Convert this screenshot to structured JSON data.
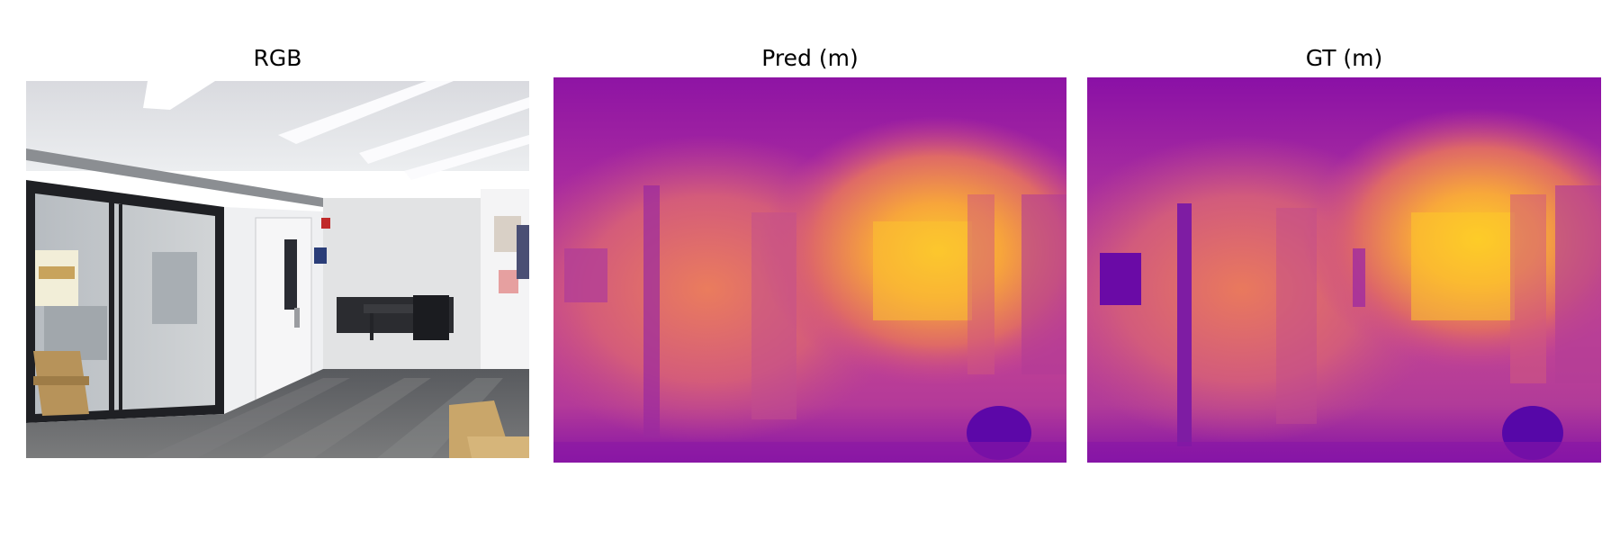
{
  "figure": {
    "panels": [
      {
        "id": "rgb",
        "title": "RGB"
      },
      {
        "id": "pred",
        "title": "Pred (m)"
      },
      {
        "id": "gt",
        "title": "GT (m)"
      }
    ],
    "colormap": "plasma",
    "colors": {
      "near": "#7a0ea6",
      "mid": "#d24a8a",
      "far": "#fbc62d",
      "wall_rgb": "#e8e9ec",
      "floor_rgb": "#6f6f70"
    }
  }
}
